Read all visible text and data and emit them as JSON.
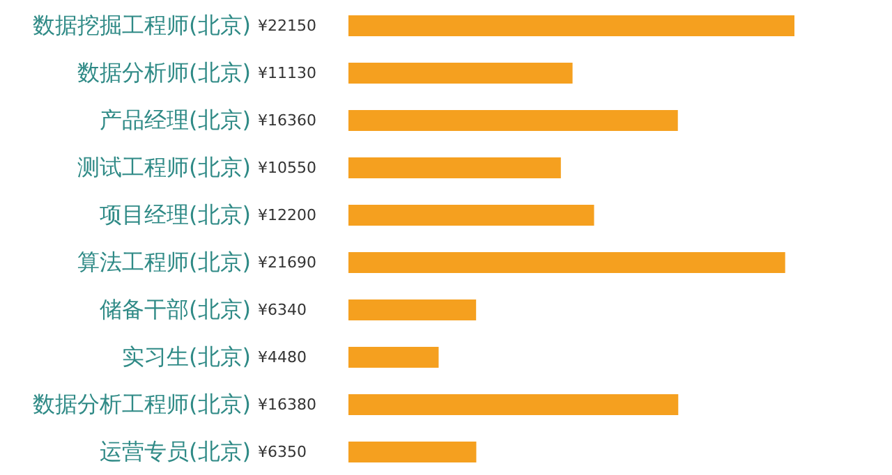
{
  "chart_data": {
    "type": "bar",
    "orientation": "horizontal",
    "categories": [
      "数据挖掘工程师(北京)",
      "数据分析师(北京)",
      "产品经理(北京)",
      "测试工程师(北京)",
      "项目经理(北京)",
      "算法工程师(北京)",
      "储备干部(北京)",
      "实习生(北京)",
      "数据分析工程师(北京)",
      "运营专员(北京)"
    ],
    "values": [
      22150,
      11130,
      16360,
      10550,
      12200,
      21690,
      6340,
      4480,
      16380,
      6350
    ],
    "value_labels": [
      "¥22150",
      "¥11130",
      "¥16360",
      "¥10550",
      "¥12200",
      "¥21690",
      "¥6340",
      "¥4480",
      "¥16380",
      "¥6350"
    ],
    "color": "#f5a01f",
    "grid": false,
    "legend": false
  }
}
